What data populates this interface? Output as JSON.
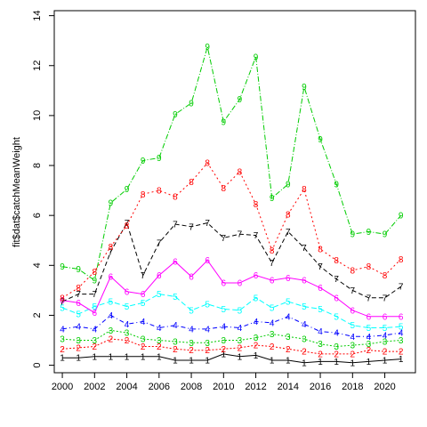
{
  "chart_data": {
    "type": "line",
    "title": "",
    "xlabel": "",
    "ylabel": "fit$dat$catchMeanWeight",
    "xlim": [
      1999.5,
      2021.9
    ],
    "ylim": [
      -0.3,
      14.2
    ],
    "x_ticks": [
      2000,
      2002,
      2004,
      2006,
      2008,
      2010,
      2012,
      2014,
      2016,
      2018,
      2020
    ],
    "x_tick_labels": [
      "2000",
      "2002",
      "2004",
      "2006",
      "2008",
      "2010",
      "2012",
      "2014",
      "2016",
      "2018",
      "2020"
    ],
    "y_ticks": [
      0,
      2,
      4,
      6,
      8,
      10,
      12,
      14
    ],
    "y_tick_labels": [
      "0",
      "2",
      "4",
      "6",
      "8",
      "10",
      "12",
      "14"
    ],
    "grid": false,
    "legend": "none",
    "x": [
      2000,
      2001,
      2002,
      2003,
      2004,
      2005,
      2006,
      2007,
      2008,
      2009,
      2010,
      2011,
      2012,
      2013,
      2014,
      2015,
      2016,
      2017,
      2018,
      2019,
      2020,
      2021
    ],
    "series": [
      {
        "label": "1",
        "color": "#000000",
        "dash": "solid",
        "values": [
          0.3,
          0.3,
          0.35,
          0.35,
          0.35,
          0.35,
          0.35,
          0.2,
          0.2,
          0.2,
          0.45,
          0.35,
          0.4,
          0.2,
          0.2,
          0.1,
          0.15,
          0.15,
          0.1,
          0.15,
          0.2,
          0.25
        ]
      },
      {
        "label": "2",
        "color": "#ff0000",
        "dash": "2,2",
        "values": [
          0.65,
          0.7,
          0.75,
          1.05,
          1.0,
          0.75,
          0.75,
          0.65,
          0.6,
          0.6,
          0.65,
          0.7,
          0.8,
          0.75,
          0.65,
          0.55,
          0.45,
          0.45,
          0.45,
          0.6,
          0.55,
          0.55
        ]
      },
      {
        "label": "3",
        "color": "#00cc00",
        "dash": "2,2",
        "values": [
          1.05,
          1.0,
          1.0,
          1.4,
          1.3,
          1.05,
          1.0,
          0.95,
          0.9,
          0.9,
          1.0,
          1.0,
          1.1,
          1.25,
          1.15,
          1.05,
          0.85,
          0.75,
          0.8,
          0.85,
          0.95,
          1.0
        ]
      },
      {
        "label": "4",
        "color": "#0000ff",
        "dash": "5,3,1,3",
        "values": [
          1.45,
          1.55,
          1.45,
          2.0,
          1.65,
          1.75,
          1.5,
          1.6,
          1.45,
          1.45,
          1.55,
          1.5,
          1.75,
          1.7,
          1.95,
          1.65,
          1.35,
          1.3,
          1.15,
          1.15,
          1.2,
          1.3
        ]
      },
      {
        "label": "5",
        "color": "#00ffff",
        "dash": "6,3",
        "values": [
          2.3,
          2.05,
          2.35,
          2.55,
          2.35,
          2.5,
          2.85,
          2.75,
          2.2,
          2.45,
          2.25,
          2.2,
          2.7,
          2.3,
          2.55,
          2.35,
          2.25,
          1.95,
          1.6,
          1.5,
          1.5,
          1.55
        ]
      },
      {
        "label": "6",
        "color": "#ff00ff",
        "dash": "solid",
        "values": [
          2.6,
          2.5,
          2.1,
          3.55,
          2.95,
          2.85,
          3.6,
          4.15,
          3.55,
          4.2,
          3.3,
          3.3,
          3.6,
          3.4,
          3.5,
          3.4,
          3.1,
          2.7,
          2.2,
          1.95,
          1.95,
          1.95
        ]
      },
      {
        "label": "7",
        "color": "#000000",
        "dash": "5,3",
        "values": [
          2.55,
          2.85,
          2.85,
          4.55,
          5.7,
          3.6,
          4.9,
          5.65,
          5.55,
          5.7,
          5.1,
          5.25,
          5.2,
          4.1,
          5.35,
          4.7,
          3.95,
          3.45,
          3.0,
          2.7,
          2.7,
          3.15
        ]
      },
      {
        "label": "8",
        "color": "#ff0000",
        "dash": "2,3",
        "values": [
          2.7,
          3.1,
          3.75,
          4.75,
          5.6,
          6.85,
          7.0,
          6.75,
          7.35,
          8.1,
          7.1,
          7.75,
          6.45,
          4.6,
          6.05,
          7.05,
          4.65,
          4.2,
          3.8,
          3.95,
          3.6,
          4.25
        ]
      },
      {
        "label": "9",
        "color": "#00cc00",
        "dash": "6,2,1,2",
        "values": [
          3.95,
          3.85,
          3.4,
          6.5,
          7.05,
          8.2,
          8.3,
          10.05,
          10.5,
          12.75,
          9.75,
          10.65,
          12.35,
          6.7,
          7.25,
          11.15,
          9.05,
          7.25,
          5.25,
          5.35,
          5.25,
          6.0
        ]
      }
    ]
  }
}
